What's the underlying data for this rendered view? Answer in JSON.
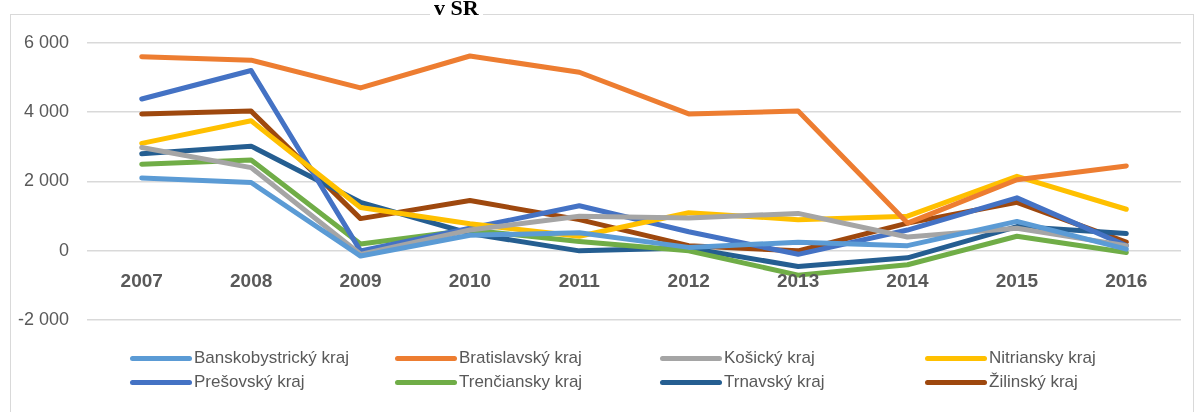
{
  "chart_data": {
    "type": "line",
    "title": "v SR",
    "categories": [
      "2007",
      "2008",
      "2009",
      "2010",
      "2011",
      "2012",
      "2013",
      "2014",
      "2015",
      "2016"
    ],
    "series": [
      {
        "name": "Banskobystrický kraj",
        "color": "#5b9bd5",
        "values": [
          2100,
          1970,
          -150,
          450,
          520,
          100,
          250,
          150,
          850,
          50
        ]
      },
      {
        "name": "Bratislavský kraj",
        "color": "#ed7d31",
        "values": [
          5600,
          5500,
          4700,
          5620,
          5150,
          3950,
          4030,
          800,
          2050,
          2450
        ]
      },
      {
        "name": "Košický kraj",
        "color": "#a5a5a5",
        "values": [
          2980,
          2400,
          -100,
          600,
          1000,
          950,
          1080,
          400,
          650,
          150
        ]
      },
      {
        "name": "Nitriansky kraj",
        "color": "#ffc000",
        "values": [
          3100,
          3750,
          1250,
          780,
          420,
          1100,
          900,
          1000,
          2150,
          1200
        ]
      },
      {
        "name": "Prešovský kraj",
        "color": "#4472c4",
        "values": [
          4380,
          5200,
          0,
          650,
          1300,
          550,
          -100,
          600,
          1530,
          150
        ]
      },
      {
        "name": "Trenčiansky kraj",
        "color": "#70ad47",
        "values": [
          2500,
          2620,
          200,
          600,
          270,
          0,
          -700,
          -400,
          420,
          -50
        ]
      },
      {
        "name": "Trnavský kraj",
        "color": "#255e91",
        "values": [
          2800,
          3020,
          1400,
          500,
          0,
          80,
          -450,
          -200,
          700,
          500
        ]
      },
      {
        "name": "Žilinský kraj",
        "color": "#9e480e",
        "values": [
          3950,
          4030,
          930,
          1450,
          900,
          150,
          0,
          800,
          1400,
          250
        ]
      }
    ],
    "ylim": [
      -2000,
      6000
    ],
    "yticks": [
      {
        "value": -2000,
        "label": "-2 000"
      },
      {
        "value": 0,
        "label": "0"
      },
      {
        "value": 2000,
        "label": "2 000"
      },
      {
        "value": 4000,
        "label": "4 000"
      },
      {
        "value": 6000,
        "label": "6 000"
      }
    ],
    "grid": "y",
    "legend": "bottom",
    "marker": "none",
    "line_style": "solid"
  }
}
